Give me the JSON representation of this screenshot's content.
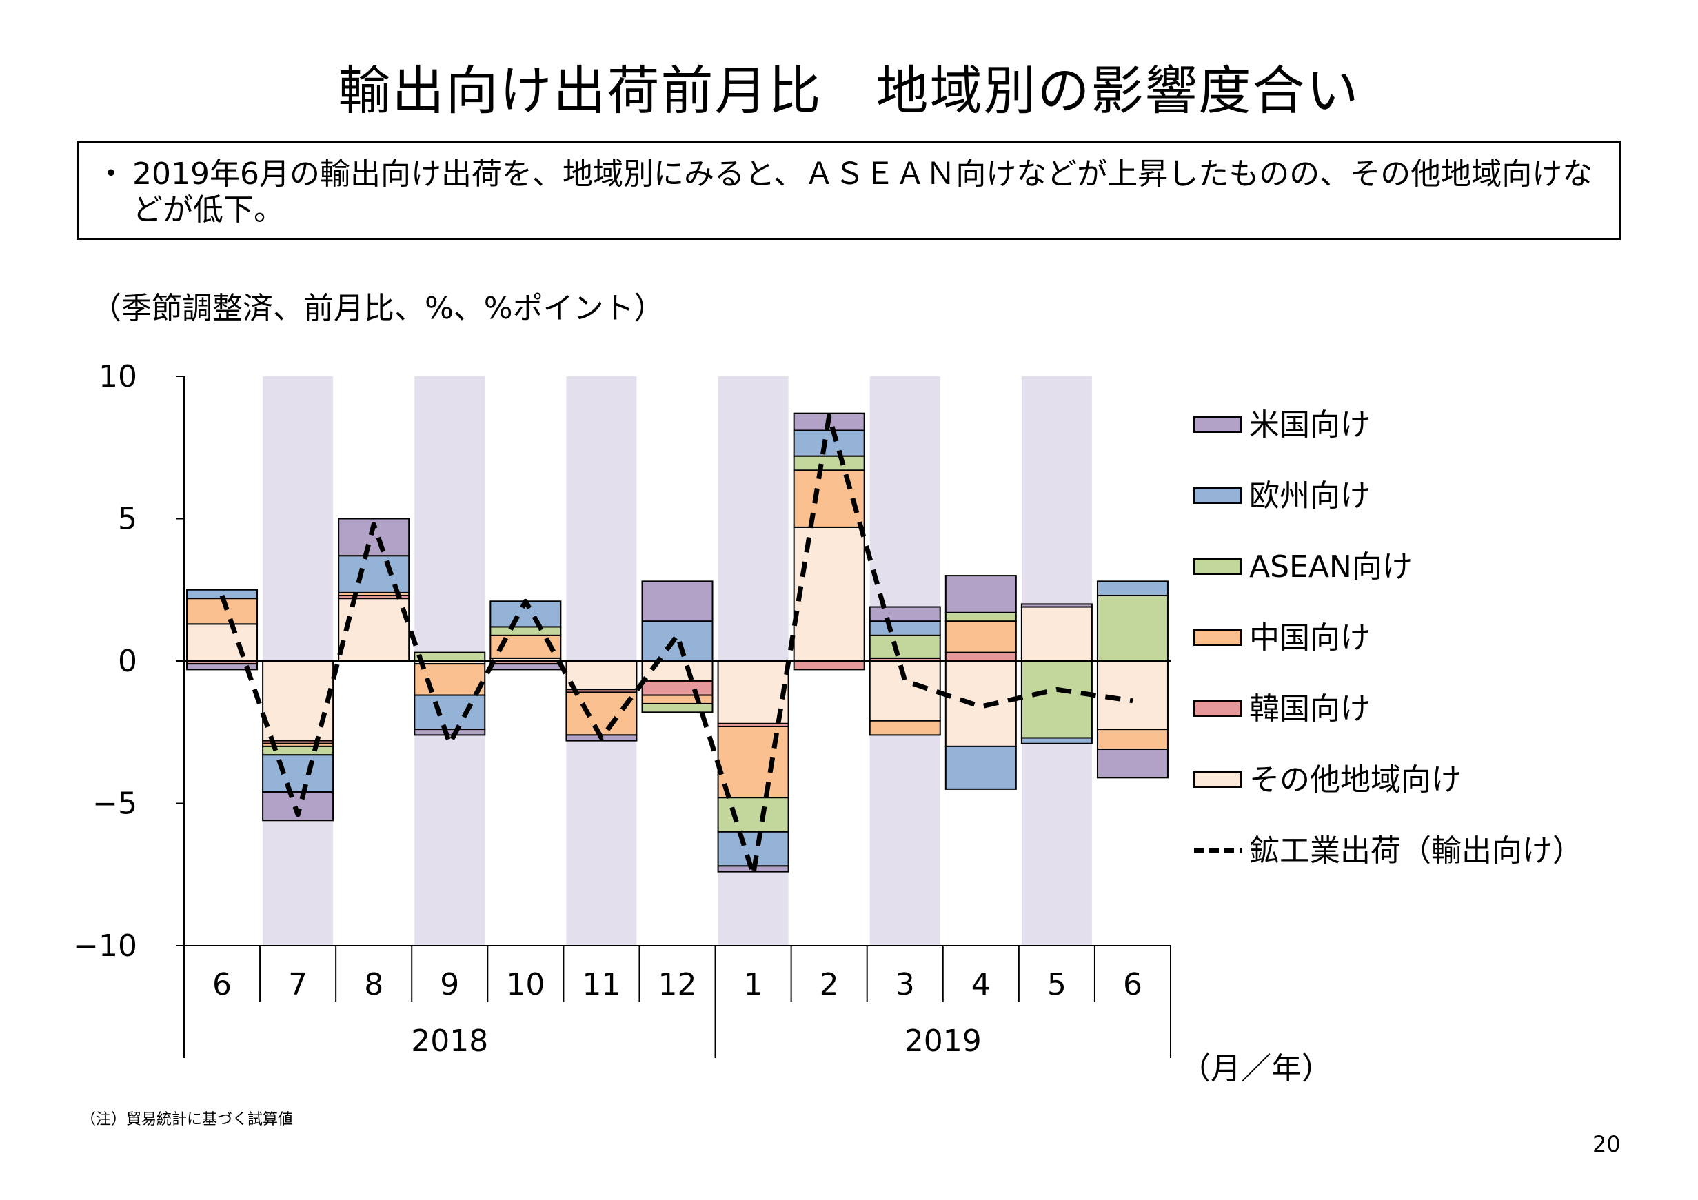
{
  "title": "輸出向け出荷前月比　地域別の影響度合い",
  "note": {
    "bullet": "・",
    "text": "2019年6月の輸出向け出荷を、地域別にみると、ＡＳＥＡＮ向けなどが上昇したものの、その他地域向けなどが低下。"
  },
  "unit_label": "（季節調整済、前月比、%、%ポイント）",
  "axis_unit_label": "（月／年）",
  "footnote": "（注）貿易統計に基づく試算値",
  "page_number": "20",
  "colors": {
    "us": "#b3a2c7",
    "europe": "#95b3d7",
    "asean": "#c3d69b",
    "china": "#fac090",
    "korea": "#e6999a",
    "other": "#fde9d9",
    "band": "#e4dfec",
    "line": "#000000"
  },
  "chart_data": {
    "type": "bar",
    "stacked": true,
    "categories": [
      "6",
      "7",
      "8",
      "9",
      "10",
      "11",
      "12",
      "1",
      "2",
      "3",
      "4",
      "5",
      "6"
    ],
    "year_groups": [
      {
        "label": "2018",
        "start": 0,
        "end": 6
      },
      {
        "label": "2019",
        "start": 7,
        "end": 12
      }
    ],
    "ylim": [
      -10,
      10
    ],
    "yticks": [
      10,
      5,
      0,
      -5,
      -10
    ],
    "shaded_months": [
      1,
      3,
      5,
      7,
      9,
      11
    ],
    "series": [
      {
        "key": "other",
        "name": "その他地域向け",
        "values": [
          1.3,
          -2.8,
          2.2,
          -0.1,
          0.1,
          -1.0,
          -0.7,
          -2.2,
          4.7,
          -2.1,
          -3.0,
          1.9,
          -2.4
        ]
      },
      {
        "key": "korea",
        "name": "韓国向け",
        "values": [
          -0.1,
          -0.1,
          0.1,
          0.0,
          -0.1,
          -0.1,
          -0.5,
          -0.1,
          -0.3,
          0.1,
          0.3,
          0.0,
          0.0
        ]
      },
      {
        "key": "china",
        "name": "中国向け",
        "values": [
          0.9,
          -0.1,
          0.1,
          -1.1,
          0.8,
          -1.5,
          -0.3,
          -2.5,
          2.0,
          -0.5,
          1.1,
          0.0,
          -0.7
        ]
      },
      {
        "key": "asean",
        "name": "ASEAN向け",
        "values": [
          0.0,
          -0.3,
          0.0,
          0.3,
          0.3,
          0.0,
          -0.3,
          -1.2,
          0.5,
          0.8,
          0.3,
          -2.7,
          2.3
        ]
      },
      {
        "key": "europe",
        "name": "欧州向け",
        "values": [
          0.3,
          -1.3,
          1.3,
          -1.2,
          0.9,
          0.0,
          1.4,
          -1.2,
          0.9,
          0.5,
          -1.5,
          -0.2,
          0.5
        ]
      },
      {
        "key": "us",
        "name": "米国向け",
        "values": [
          -0.2,
          -1.0,
          1.3,
          -0.2,
          -0.2,
          -0.2,
          1.4,
          -0.2,
          0.6,
          0.5,
          1.3,
          0.1,
          -1.0
        ]
      }
    ],
    "legend_order": [
      "us",
      "europe",
      "asean",
      "china",
      "korea",
      "other"
    ],
    "line_series": {
      "name": "鉱工業出荷（輸出向け）",
      "values": [
        2.3,
        -5.4,
        4.8,
        -2.9,
        2.1,
        -2.7,
        0.9,
        -7.5,
        8.6,
        -0.7,
        -1.6,
        -1.0,
        -1.4
      ]
    },
    "legend_position": "right",
    "grid": false
  }
}
